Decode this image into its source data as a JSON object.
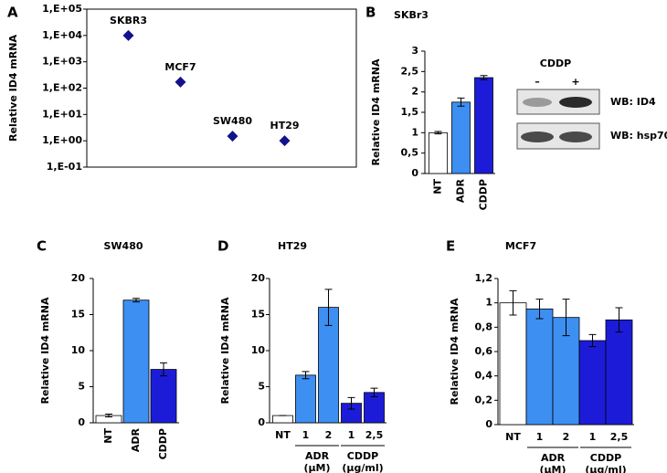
{
  "chart_data": [
    {
      "type": "scatter",
      "panel": "A",
      "y_label": "Relative ID4 mRNA",
      "log_y": true,
      "categories": [
        "SKBR3",
        "MCF7",
        "SW480",
        "HT29"
      ],
      "values": [
        10000,
        170,
        1.5,
        1.0
      ],
      "color": "#12128c",
      "ylim": [
        0.1,
        100000
      ],
      "yticks": [
        {
          "value": 0.1,
          "label": "1,E-01"
        },
        {
          "value": 1,
          "label": "1,E+00"
        },
        {
          "value": 10,
          "label": "1,E+01"
        },
        {
          "value": 100,
          "label": "1,E+02"
        },
        {
          "value": 1000,
          "label": "1,E+03"
        },
        {
          "value": 10000,
          "label": "1,E+04"
        },
        {
          "value": 100000,
          "label": "1,E+05"
        }
      ]
    },
    {
      "type": "bar",
      "panel": "B",
      "title": "SKBr3",
      "y_label": "Relative ID4 mRNA",
      "rotate_categories": true,
      "categories": [
        "NT",
        "ADR",
        "CDDP"
      ],
      "values": [
        1.0,
        1.75,
        2.35
      ],
      "errors": [
        0.03,
        0.1,
        0.05
      ],
      "colors": [
        "#ffffff",
        "#3d8ff2",
        "#1c1cd8"
      ],
      "ylim": [
        0,
        3
      ],
      "yticks": [
        0,
        {
          "value": 0.5,
          "label": "0,5"
        },
        1,
        {
          "value": 1.5,
          "label": "1,5"
        },
        2,
        {
          "value": 2.5,
          "label": "2,5"
        },
        3
      ],
      "blot": {
        "treatment": "CDDP",
        "lanes": [
          "–",
          "+"
        ],
        "rows": [
          "WB: ID4",
          "WB: hsp70"
        ]
      }
    },
    {
      "type": "bar",
      "panel": "C",
      "title": "SW480",
      "y_label": "Relative ID4 mRNA",
      "rotate_categories": true,
      "categories": [
        "NT",
        "ADR",
        "CDDP"
      ],
      "values": [
        1.0,
        17,
        7.4
      ],
      "errors": [
        0.2,
        0.25,
        0.9
      ],
      "colors": [
        "#ffffff",
        "#3d8ff2",
        "#1c1cd8"
      ],
      "ylim": [
        0,
        20
      ],
      "yticks": [
        0,
        5,
        10,
        15,
        20
      ]
    },
    {
      "type": "bar",
      "panel": "D",
      "title": "HT29",
      "y_label": "Relative ID4 mRNA",
      "rotate_categories": false,
      "categories": [
        "NT",
        "1",
        "2",
        "1",
        "2,5"
      ],
      "values": [
        1.0,
        6.6,
        16,
        2.7,
        4.2
      ],
      "errors": [
        0,
        0.5,
        2.5,
        0.8,
        0.6
      ],
      "colors": [
        "#ffffff",
        "#3d8ff2",
        "#3d8ff2",
        "#1c1cd8",
        "#1c1cd8"
      ],
      "group": [
        null,
        "ADR",
        "ADR",
        "CDDP",
        "CDDP"
      ],
      "group_unit": [
        null,
        "(µM)",
        "(µM)",
        "(µg/ml)",
        "(µg/ml)"
      ],
      "ylim": [
        0,
        20
      ],
      "yticks": [
        0,
        5,
        10,
        15,
        20
      ]
    },
    {
      "type": "bar",
      "panel": "E",
      "title": "MCF7",
      "y_label": "Relative ID4 mRNA",
      "rotate_categories": false,
      "categories": [
        "NT",
        "1",
        "2",
        "1",
        "2,5"
      ],
      "values": [
        1.0,
        0.95,
        0.88,
        0.69,
        0.86
      ],
      "errors": [
        0.1,
        0.08,
        0.15,
        0.05,
        0.1
      ],
      "colors": [
        "#ffffff",
        "#3d8ff2",
        "#3d8ff2",
        "#1c1cd8",
        "#1c1cd8"
      ],
      "group": [
        null,
        "ADR",
        "ADR",
        "CDDP",
        "CDDP"
      ],
      "group_unit": [
        null,
        "(µM)",
        "(µM)",
        "(µg/ml)",
        "(µg/ml)"
      ],
      "ylim": [
        0,
        1.2
      ],
      "yticks": [
        0,
        {
          "value": 0.2,
          "label": "0,2"
        },
        {
          "value": 0.4,
          "label": "0,4"
        },
        {
          "value": 0.6,
          "label": "0,6"
        },
        {
          "value": 0.8,
          "label": "0,8"
        },
        1,
        {
          "value": 1.2,
          "label": "1,2"
        }
      ]
    }
  ]
}
